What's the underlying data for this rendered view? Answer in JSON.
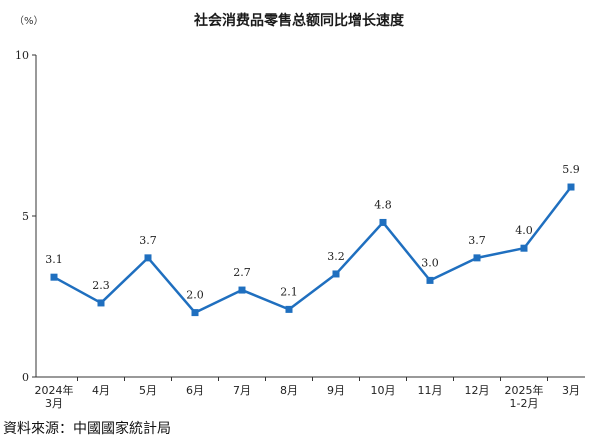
{
  "chart_data": {
    "type": "line",
    "title": "社会消费品零售总额同比增长速度",
    "unit_label": "（%）",
    "categories": [
      [
        "2024年",
        "3月"
      ],
      [
        "4月"
      ],
      [
        "5月"
      ],
      [
        "6月"
      ],
      [
        "7月"
      ],
      [
        "8月"
      ],
      [
        "9月"
      ],
      [
        "10月"
      ],
      [
        "11月"
      ],
      [
        "12月"
      ],
      [
        "2025年",
        "1-2月"
      ],
      [
        "3月"
      ]
    ],
    "values": [
      3.1,
      2.3,
      3.7,
      2.0,
      2.7,
      2.1,
      3.2,
      4.8,
      3.0,
      3.7,
      4.0,
      5.9
    ],
    "value_labels": [
      "3.1",
      "2.3",
      "3.7",
      "2.0",
      "2.7",
      "2.1",
      "3.2",
      "4.8",
      "3.0",
      "3.7",
      "4.0",
      "5.9"
    ],
    "ylim": [
      0,
      10
    ],
    "yticks": [
      "0",
      "5",
      "10"
    ],
    "line_color": "#1f6fbf",
    "grid": false
  },
  "footer": {
    "source": "資料來源：中國國家統計局"
  }
}
